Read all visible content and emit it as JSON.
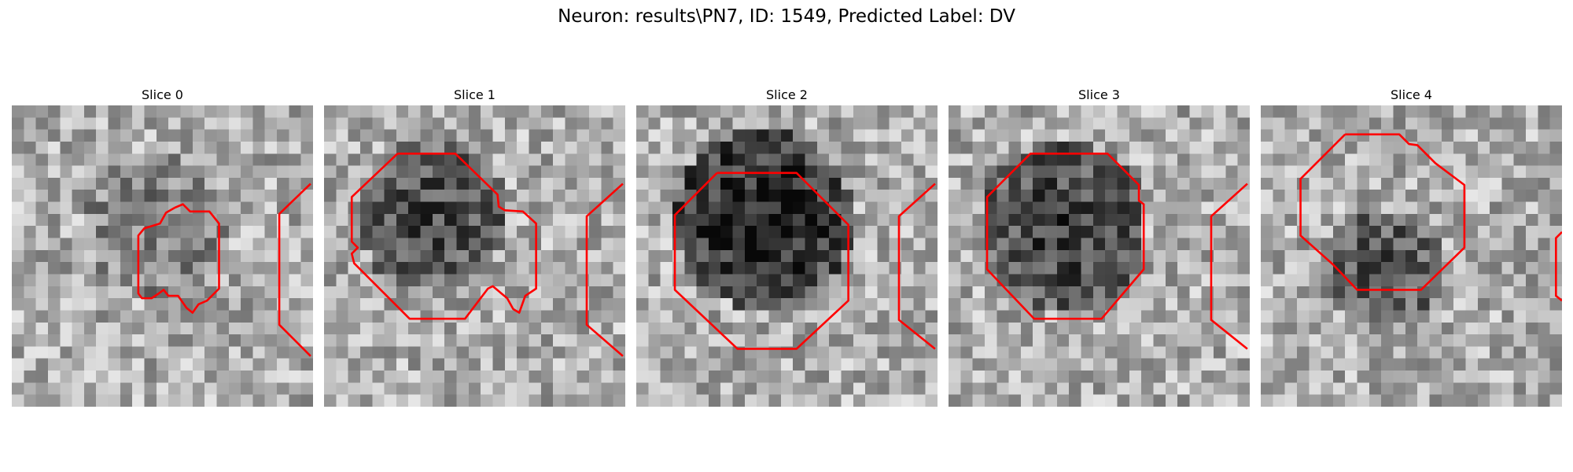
{
  "figure": {
    "suptitle": "Neuron: results\\PN7, ID: 1549, Predicted Label: DV",
    "contour_color": "#ff0000",
    "colormap": "gray",
    "grid_cells": 25
  },
  "slices": [
    {
      "title": "Slice 0",
      "dark_center": [
        12,
        10
      ],
      "dark_radius": 6,
      "darkness": 0.2,
      "seed": 11,
      "contours": [
        [
          [
            13.5,
            8.5
          ],
          [
            14.2,
            8.2
          ],
          [
            14.8,
            8.8
          ],
          [
            16.4,
            8.8
          ],
          [
            17.2,
            9.8
          ],
          [
            17.2,
            15.2
          ],
          [
            16.2,
            16.2
          ],
          [
            15.5,
            16.5
          ],
          [
            15.0,
            17.2
          ],
          [
            14.5,
            16.8
          ],
          [
            13.8,
            15.8
          ],
          [
            13.0,
            15.8
          ],
          [
            12.6,
            15.3
          ],
          [
            12.2,
            15.6
          ],
          [
            11.6,
            16.0
          ],
          [
            10.8,
            16.0
          ],
          [
            10.5,
            15.6
          ],
          [
            10.5,
            10.8
          ],
          [
            11.0,
            10.2
          ],
          [
            12.3,
            9.8
          ],
          [
            12.8,
            8.9
          ],
          [
            13.5,
            8.5
          ]
        ],
        [
          [
            24.8,
            6.5
          ],
          [
            22.2,
            9.0
          ],
          [
            22.2,
            18.2
          ],
          [
            24.8,
            20.8
          ]
        ]
      ]
    },
    {
      "title": "Slice 1",
      "dark_center": [
        9,
        9
      ],
      "dark_radius": 6.5,
      "darkness": 0.42,
      "seed": 23,
      "contours": [
        [
          [
            6.1,
            4.0
          ],
          [
            10.9,
            4.0
          ],
          [
            14.4,
            7.4
          ],
          [
            14.5,
            8.4
          ],
          [
            15.0,
            8.7
          ],
          [
            16.5,
            8.8
          ],
          [
            17.6,
            9.8
          ],
          [
            17.6,
            15.2
          ],
          [
            16.7,
            15.8
          ],
          [
            16.2,
            17.2
          ],
          [
            15.7,
            16.9
          ],
          [
            15.2,
            16.0
          ],
          [
            14.0,
            15.0
          ],
          [
            13.6,
            15.2
          ],
          [
            11.7,
            17.7
          ],
          [
            7.1,
            17.7
          ],
          [
            2.5,
            13.1
          ],
          [
            2.3,
            12.3
          ],
          [
            2.8,
            11.8
          ],
          [
            2.3,
            11.3
          ],
          [
            2.3,
            7.6
          ],
          [
            6.1,
            4.0
          ]
        ],
        [
          [
            24.8,
            6.5
          ],
          [
            21.8,
            9.2
          ],
          [
            21.8,
            18.2
          ],
          [
            24.8,
            20.8
          ]
        ]
      ]
    },
    {
      "title": "Slice 2",
      "dark_center": [
        10.5,
        9.5
      ],
      "dark_radius": 7.5,
      "darkness": 0.62,
      "seed": 37,
      "contours": [
        [
          [
            6.7,
            5.6
          ],
          [
            13.3,
            5.6
          ],
          [
            17.6,
            9.9
          ],
          [
            17.6,
            16.2
          ],
          [
            13.3,
            20.2
          ],
          [
            8.4,
            20.2
          ],
          [
            3.2,
            15.3
          ],
          [
            3.2,
            9.1
          ],
          [
            6.7,
            5.6
          ]
        ],
        [
          [
            24.8,
            6.5
          ],
          [
            21.8,
            9.2
          ],
          [
            21.8,
            17.8
          ],
          [
            24.8,
            20.2
          ]
        ]
      ]
    },
    {
      "title": "Slice 3",
      "dark_center": [
        9.5,
        10
      ],
      "dark_radius": 7,
      "darkness": 0.48,
      "seed": 41,
      "contours": [
        [
          [
            9.2,
            4.0
          ],
          [
            13.2,
            4.0
          ],
          [
            15.8,
            6.6
          ],
          [
            15.8,
            7.9
          ],
          [
            16.2,
            8.2
          ],
          [
            16.2,
            13.6
          ],
          [
            12.7,
            17.7
          ],
          [
            7.1,
            17.7
          ],
          [
            3.2,
            13.6
          ],
          [
            3.2,
            7.6
          ],
          [
            6.8,
            4.0
          ],
          [
            9.2,
            4.0
          ]
        ],
        [
          [
            24.8,
            6.5
          ],
          [
            21.8,
            9.2
          ],
          [
            21.8,
            17.8
          ],
          [
            24.8,
            20.2
          ]
        ]
      ]
    },
    {
      "title": "Slice 4",
      "dark_center": [
        10,
        13.5
      ],
      "dark_radius": 5,
      "darkness": 0.42,
      "seed": 53,
      "contours": [
        [
          [
            7.0,
            2.4
          ],
          [
            11.5,
            2.4
          ],
          [
            12.3,
            3.2
          ],
          [
            13.0,
            3.3
          ],
          [
            14.5,
            4.8
          ],
          [
            16.9,
            6.6
          ],
          [
            16.9,
            11.8
          ],
          [
            13.3,
            15.3
          ],
          [
            8.0,
            15.3
          ],
          [
            6.0,
            13.2
          ],
          [
            3.3,
            10.8
          ],
          [
            3.3,
            6.1
          ],
          [
            7.0,
            2.4
          ]
        ],
        [
          [
            25,
            10.5
          ],
          [
            24.5,
            11.0
          ],
          [
            24.5,
            15.8
          ],
          [
            25,
            16.2
          ]
        ]
      ]
    }
  ]
}
